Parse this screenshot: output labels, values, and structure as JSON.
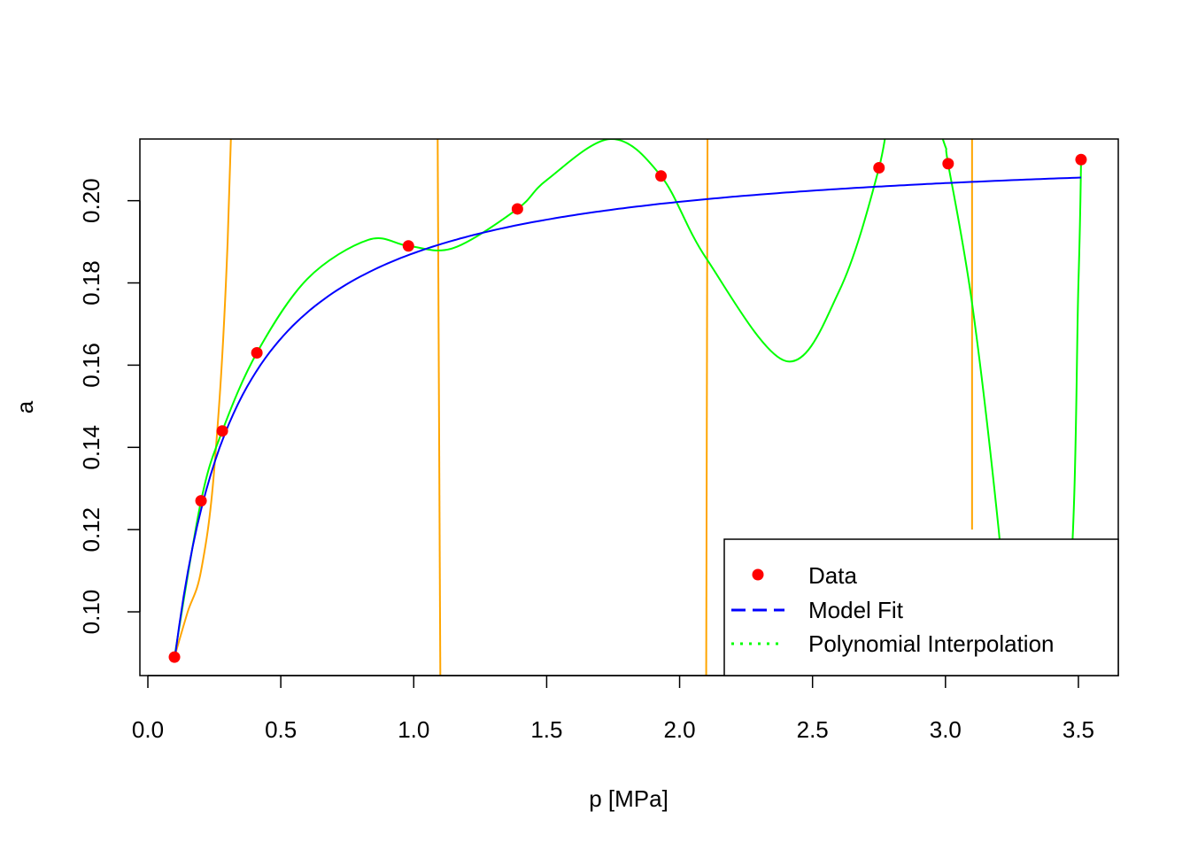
{
  "chart_data": {
    "type": "scatter",
    "title": "",
    "xlabel": "p [MPa]",
    "ylabel": "a",
    "xlim": [
      -0.03,
      3.65
    ],
    "ylim": [
      0.0845,
      0.215
    ],
    "xticks": [
      "0.0",
      "0.5",
      "1.0",
      "1.5",
      "2.0",
      "2.5",
      "3.0",
      "3.5"
    ],
    "yticks": [
      "0.10",
      "0.12",
      "0.14",
      "0.16",
      "0.18",
      "0.20"
    ],
    "grid": false,
    "legend_position": "bottom-right",
    "series": [
      {
        "name": "Data",
        "kind": "points",
        "color": "#ff0000",
        "x": [
          0.1,
          0.2,
          0.28,
          0.41,
          0.98,
          1.39,
          1.93,
          2.75,
          3.01,
          3.51
        ],
        "y": [
          0.089,
          0.127,
          0.144,
          0.163,
          0.189,
          0.198,
          0.206,
          0.208,
          0.209,
          0.21
        ]
      },
      {
        "name": "Model Fit",
        "kind": "line",
        "line_style": "dashed",
        "color": "#0000ff",
        "a_max": 0.214,
        "b": 7.0
      },
      {
        "name": "Polynomial Interpolation",
        "kind": "line",
        "line_style": "dotted",
        "color": "#00ff00",
        "x": [
          0.1,
          0.2,
          0.28,
          0.41,
          0.6,
          0.83,
          0.98,
          1.15,
          1.39,
          1.5,
          1.74,
          1.93,
          2.1,
          2.4,
          2.6,
          2.75,
          2.85,
          2.99,
          3.01,
          3.1,
          3.2,
          3.3,
          3.46,
          3.5,
          3.51
        ],
        "y": [
          0.089,
          0.127,
          0.144,
          0.163,
          0.181,
          0.1905,
          0.189,
          0.1885,
          0.198,
          0.205,
          0.215,
          0.206,
          0.186,
          0.161,
          0.178,
          0.208,
          0.24,
          0.215,
          0.209,
          0.175,
          0.12,
          0.05,
          0.1,
          0.18,
          0.21
        ]
      },
      {
        "name": "",
        "kind": "line",
        "color": "#ffa500",
        "x": [
          0.1,
          0.15,
          0.2,
          0.25,
          0.3,
          0.35
        ],
        "y": [
          0.089,
          0.1,
          0.11,
          0.135,
          0.19,
          0.3
        ]
      },
      {
        "name": "",
        "kind": "vlines",
        "color": "#ffa500",
        "x": [
          1.09,
          1.1
        ],
        "segments": [
          [
            1.09,
            0.215,
            1.1,
            0.0845
          ],
          [
            2.105,
            0.215,
            2.1,
            0.0845
          ],
          [
            3.1,
            0.215,
            3.1,
            0.12
          ]
        ]
      }
    ]
  }
}
